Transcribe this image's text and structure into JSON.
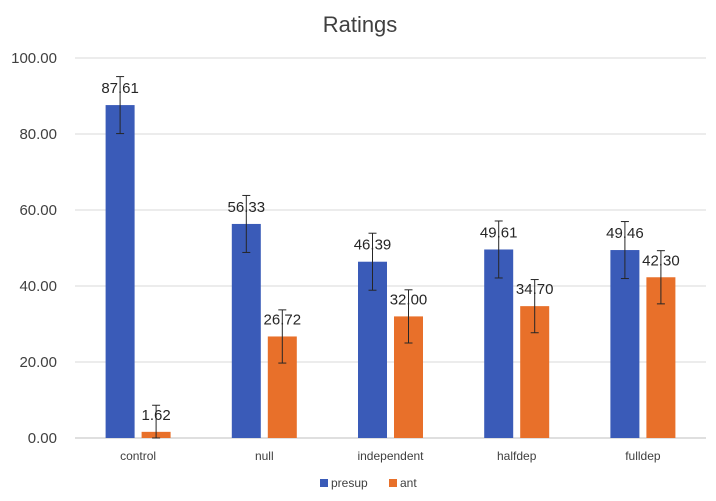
{
  "chart_data": {
    "type": "bar",
    "title": "Ratings",
    "xlabel": "",
    "ylabel": "",
    "categories": [
      "control",
      "null",
      "independent",
      "halfdep",
      "fulldep"
    ],
    "series": [
      {
        "name": "presup",
        "color": "#3A5BB8",
        "values": [
          87.61,
          56.33,
          46.39,
          49.61,
          49.46
        ],
        "labels": [
          "87.61",
          "56.33",
          "46.39",
          "49.61",
          "49.46"
        ],
        "error": [
          7.5,
          7.5,
          7.5,
          7.5,
          7.5
        ]
      },
      {
        "name": "ant",
        "color": "#E8702A",
        "values": [
          1.62,
          26.72,
          32.0,
          34.7,
          42.3
        ],
        "labels": [
          "1.62",
          "26.72",
          "32.00",
          "34.70",
          "42.30"
        ],
        "error": [
          7.0,
          7.0,
          7.0,
          7.0,
          7.0
        ]
      }
    ],
    "ylim": [
      0,
      100
    ],
    "yticks": [
      "0.00",
      "20.00",
      "40.00",
      "60.00",
      "80.00",
      "100.00"
    ],
    "grid": true,
    "legend_position": "bottom"
  }
}
